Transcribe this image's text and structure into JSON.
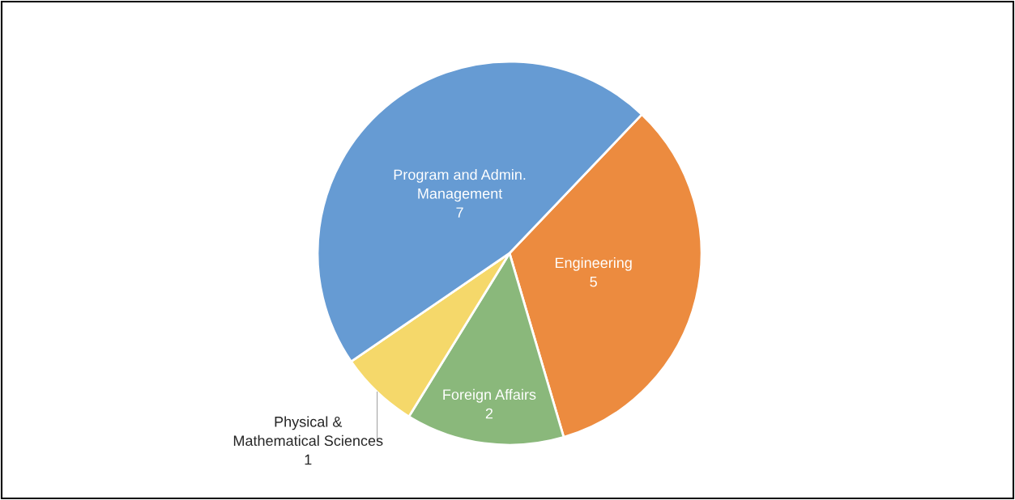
{
  "chart_data": {
    "type": "pie",
    "categories": [
      "Engineering",
      "Foreign Affairs",
      "Physical & Mathematical Sciences",
      "Program and Admin. Management"
    ],
    "values": [
      5,
      2,
      1,
      7
    ],
    "colors": [
      "#ec8b3f",
      "#8ab87b",
      "#f5d86a",
      "#669bd3"
    ],
    "data_labels": true,
    "legend": false
  }
}
